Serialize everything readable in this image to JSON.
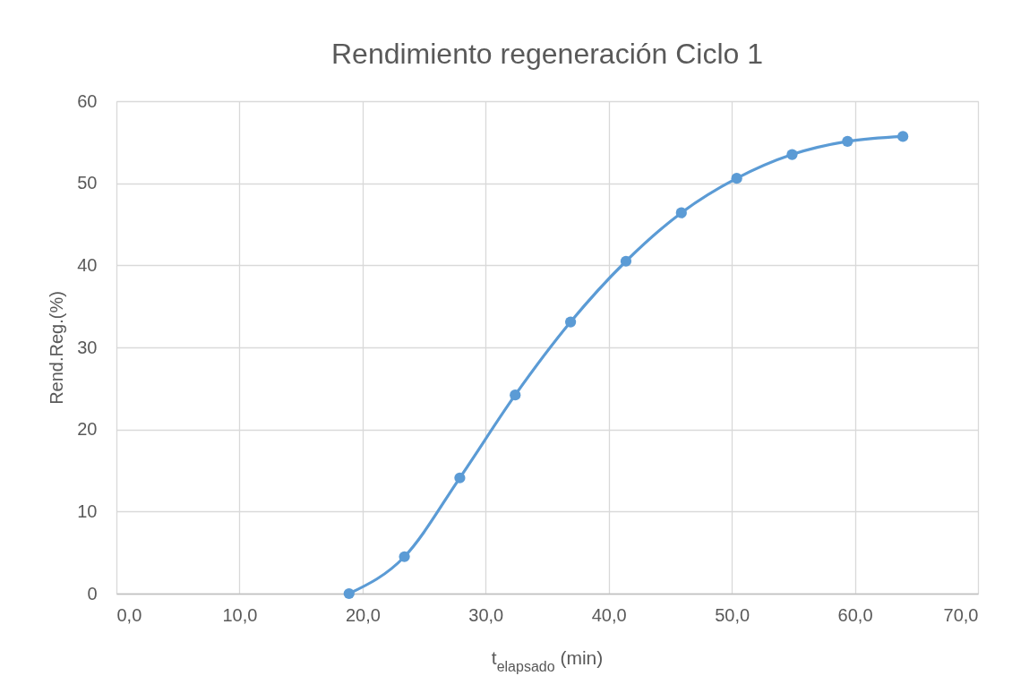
{
  "chart_data": {
    "type": "line",
    "title": "Rendimiento regeneración Ciclo 1",
    "xlabel": "t$_{elapsado}$ (min)",
    "ylabel": "Rend.Reg.(%)",
    "x": [
      18.9,
      23.4,
      27.9,
      32.4,
      36.9,
      41.4,
      45.9,
      50.4,
      54.9,
      59.4,
      63.9
    ],
    "series": [
      {
        "color": "#5b9bd5",
        "values": [
          0,
          4.5,
          14.1,
          24.2,
          33.1,
          40.5,
          46.4,
          50.6,
          53.5,
          55.1,
          55.7
        ]
      }
    ],
    "xlim": [
      0,
      70
    ],
    "ylim": [
      0,
      60
    ],
    "xticks": [
      {
        "value": 0,
        "label": "0,0"
      },
      {
        "value": 10,
        "label": "10,0"
      },
      {
        "value": 20,
        "label": "20,0"
      },
      {
        "value": 30,
        "label": "30,0"
      },
      {
        "value": 40,
        "label": "40,0"
      },
      {
        "value": 50,
        "label": "50,0"
      },
      {
        "value": 60,
        "label": "60,0"
      },
      {
        "value": 70,
        "label": "70,0"
      }
    ],
    "yticks": [
      0,
      10,
      20,
      30,
      40,
      50,
      60
    ],
    "grid": true,
    "marker": "circle",
    "line_style": "solid"
  }
}
